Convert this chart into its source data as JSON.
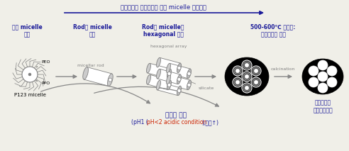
{
  "title_top": "계면활성제 농도증가에 따른 micelle 형태변화",
  "label1": "구형 micelle\n형성",
  "label2": "Rod형 micelle\n형성",
  "label3": "Rod형 micelle의\nhexagonal 적층",
  "label4": "500-600℃ 열처리:\n계면활성제 제거",
  "label5": "실리카성분\n나노기공형성",
  "label_peo": "PEO",
  "label_ppo": "PPO",
  "label_p123": "P123 micelle",
  "label_micellar": "micellar rod",
  "label_hexarray": "hexagonal array",
  "label_silicate": "silicate",
  "label_calcination": "calcination",
  "label_silica": "실리카 합성",
  "label_ph1": "(pH1 (",
  "label_ph2": "pH<2 acidic condition",
  "label_ph3": "),온도↑)",
  "bg_color": "#f0efe8",
  "blue_color": "#1a1a99",
  "red_color": "#cc2200",
  "gray_color": "#888888",
  "light_gray": "#cccccc",
  "dark_gray": "#444444",
  "black": "#000000",
  "white": "#ffffff"
}
